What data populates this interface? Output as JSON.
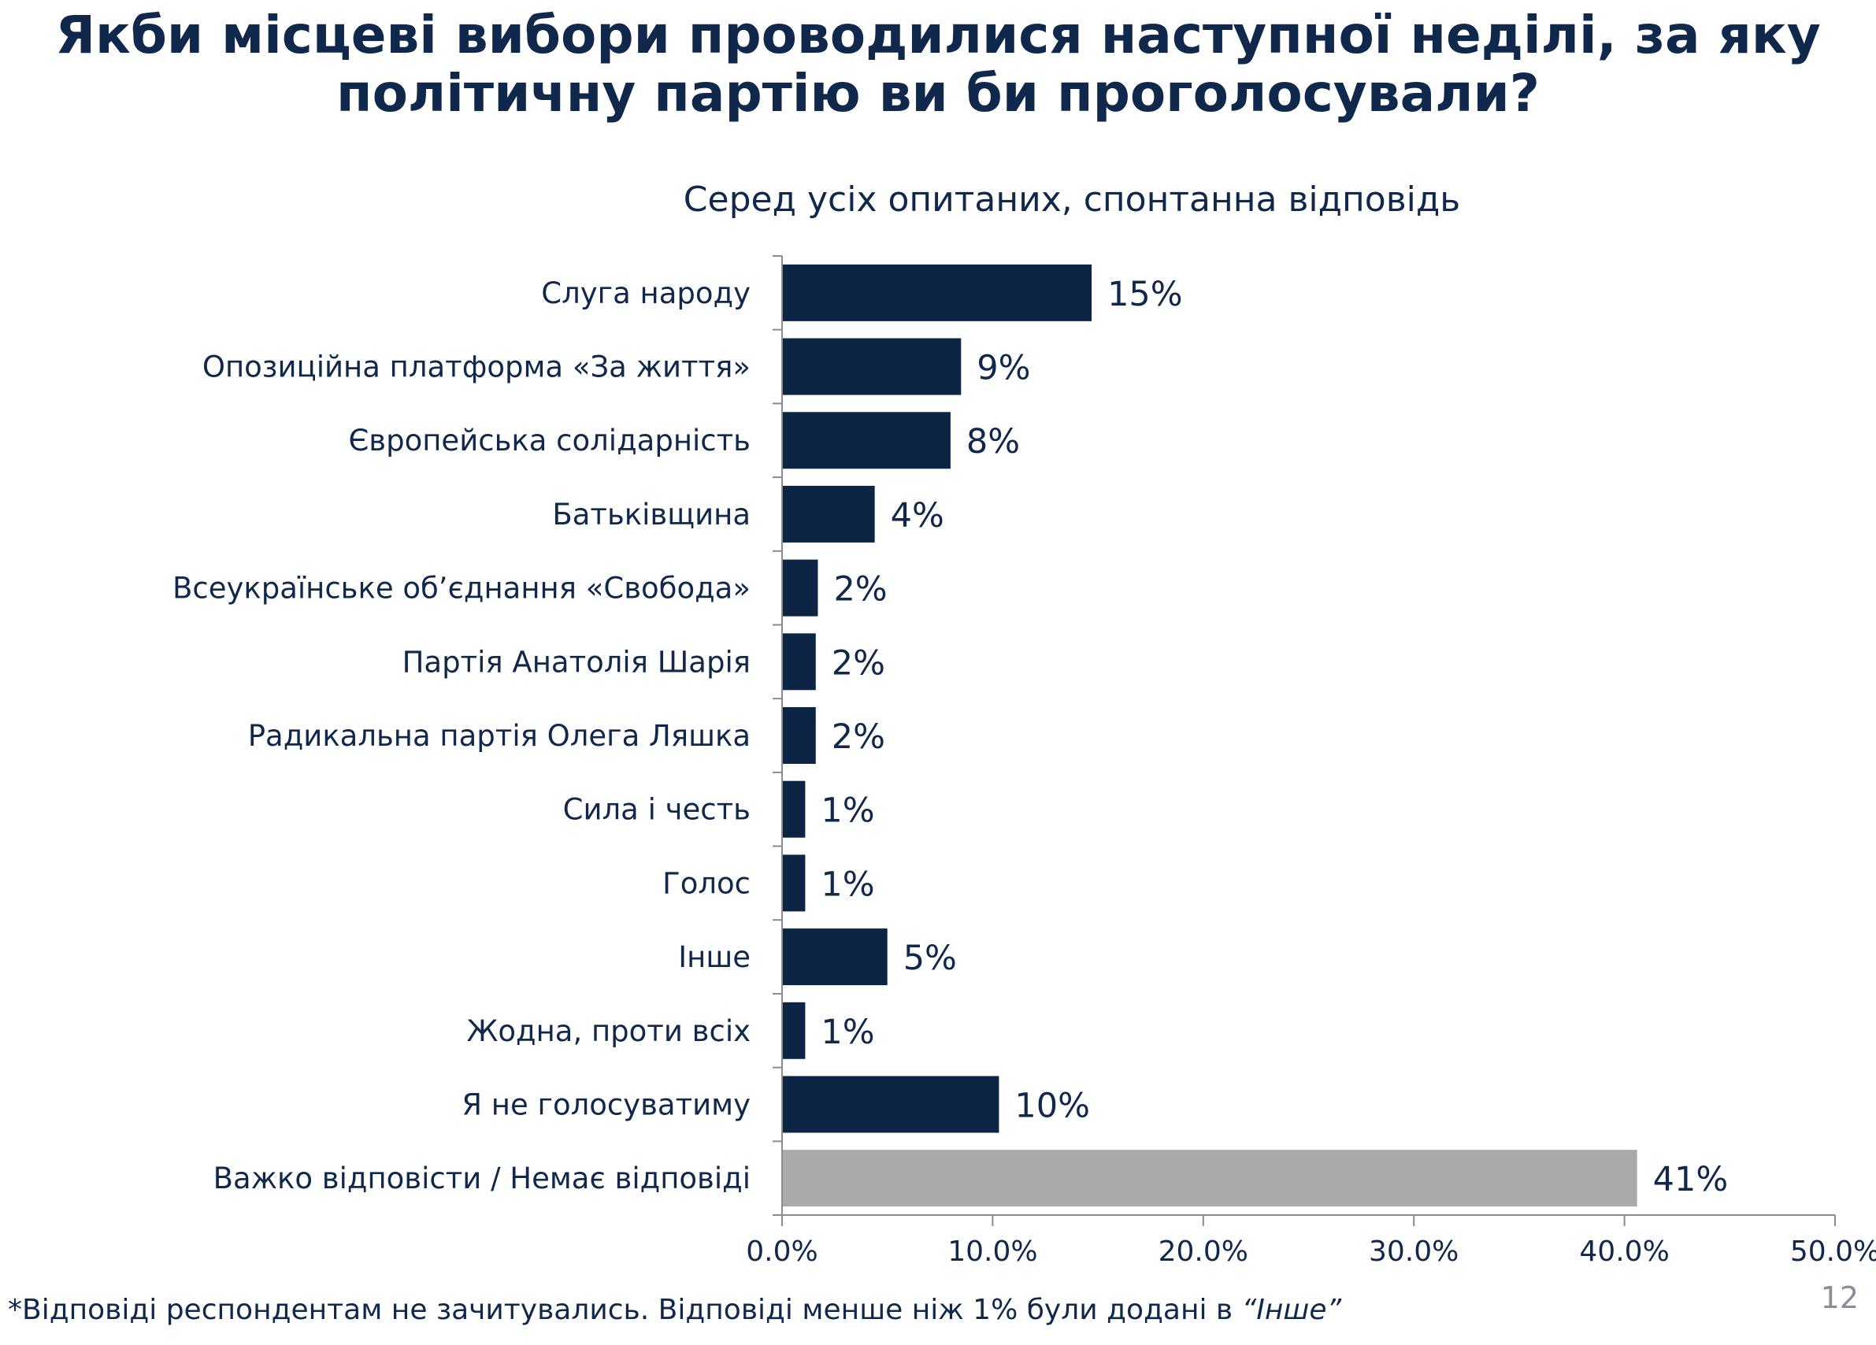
{
  "page": {
    "title_line1": "Якби місцеві вибори проводилися наступної неділі, за яку",
    "title_line2": "політичну партію ви би проголосували?",
    "subtitle": "Серед усіх опитаних, спонтанна відповідь",
    "footnote_main": "*Відповіді респондентам не зачитувались. Відповіді менше ніж 1% були додані в ",
    "footnote_quote": "“Інше”",
    "page_number": "12"
  },
  "chart_data": {
    "type": "bar",
    "orientation": "horizontal",
    "categories": [
      "Слуга народу",
      "Опозиційна платформа «За життя»",
      "Європейська солідарність",
      "Батьківщина",
      "Всеукраїнське об’єднання «Свобода»",
      "Партія Анатолія Шарія",
      "Радикальна партія Олега Ляшка",
      "Сила і честь",
      "Голос",
      "Інше",
      "Жодна, проти всіх",
      "Я не голосуватиму",
      "Важко відповісти / Немає відповіді"
    ],
    "values": [
      14.7,
      8.5,
      8.0,
      4.4,
      1.7,
      1.6,
      1.6,
      1.1,
      1.1,
      5.0,
      1.1,
      10.3,
      40.6
    ],
    "data_labels": [
      "15%",
      "9%",
      "8%",
      "4%",
      "2%",
      "2%",
      "2%",
      "1%",
      "1%",
      "5%",
      "1%",
      "10%",
      "41%"
    ],
    "bar_colors": [
      "#0c2545",
      "#0c2545",
      "#0c2545",
      "#0c2545",
      "#0c2545",
      "#0c2545",
      "#0c2545",
      "#0c2545",
      "#0c2545",
      "#0c2545",
      "#0c2545",
      "#0c2545",
      "#aaaaaa"
    ],
    "xlim": [
      0,
      50
    ],
    "xticks": [
      0,
      10,
      20,
      30,
      40,
      50
    ],
    "xtick_labels": [
      "0.0%",
      "10.0%",
      "20.0%",
      "30.0%",
      "40.0%",
      "50.0%"
    ],
    "xlabel": "",
    "ylabel": "",
    "grid": false,
    "legend": "none"
  }
}
